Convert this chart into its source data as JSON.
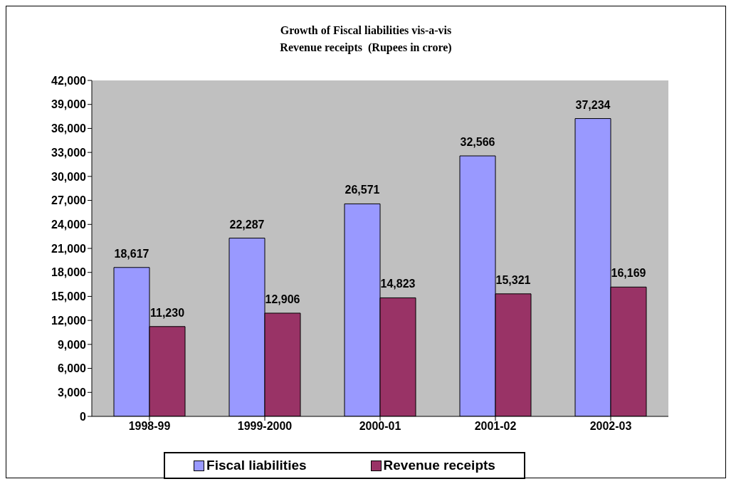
{
  "chart_data": {
    "type": "bar",
    "title": "Growth of Fiscal liabilities vis-a-vis\nRevenue receipts  (Rupees in crore)",
    "categories": [
      "1998-99",
      "1999-2000",
      "2000-01",
      "2001-02",
      "2002-03"
    ],
    "series": [
      {
        "name": "Fiscal liabilities",
        "color": "#9999ff",
        "values": [
          18617,
          22287,
          26571,
          32566,
          37234
        ],
        "value_labels": [
          "18,617",
          "22,287",
          "26,571",
          "32,566",
          "37,234"
        ]
      },
      {
        "name": "Revenue receipts",
        "color": "#993366",
        "values": [
          11230,
          12906,
          14823,
          15321,
          16169
        ],
        "value_labels": [
          "11,230",
          "12,906",
          "14,823",
          "15,321",
          "16,169"
        ]
      }
    ],
    "ylim": [
      0,
      42000
    ],
    "yticks": [
      0,
      {
        "value": 3000,
        "label": "3,000"
      },
      {
        "value": 6000,
        "label": "6,000"
      },
      {
        "value": 9000,
        "label": "9,000"
      },
      {
        "value": 12000,
        "label": "12,000"
      },
      {
        "value": 15000,
        "label": "15,000"
      },
      {
        "value": 18000,
        "label": "18,000"
      },
      {
        "value": 21000,
        "label": "21,000"
      },
      {
        "value": 24000,
        "label": "24,000"
      },
      {
        "value": 27000,
        "label": "27,000"
      },
      {
        "value": 30000,
        "label": "30,000"
      },
      {
        "value": 33000,
        "label": "33,000"
      },
      {
        "value": 36000,
        "label": "36,000"
      },
      {
        "value": 39000,
        "label": "39,000"
      },
      {
        "value": 42000,
        "label": "42,000"
      }
    ],
    "grid": false,
    "legend": "bottom"
  }
}
